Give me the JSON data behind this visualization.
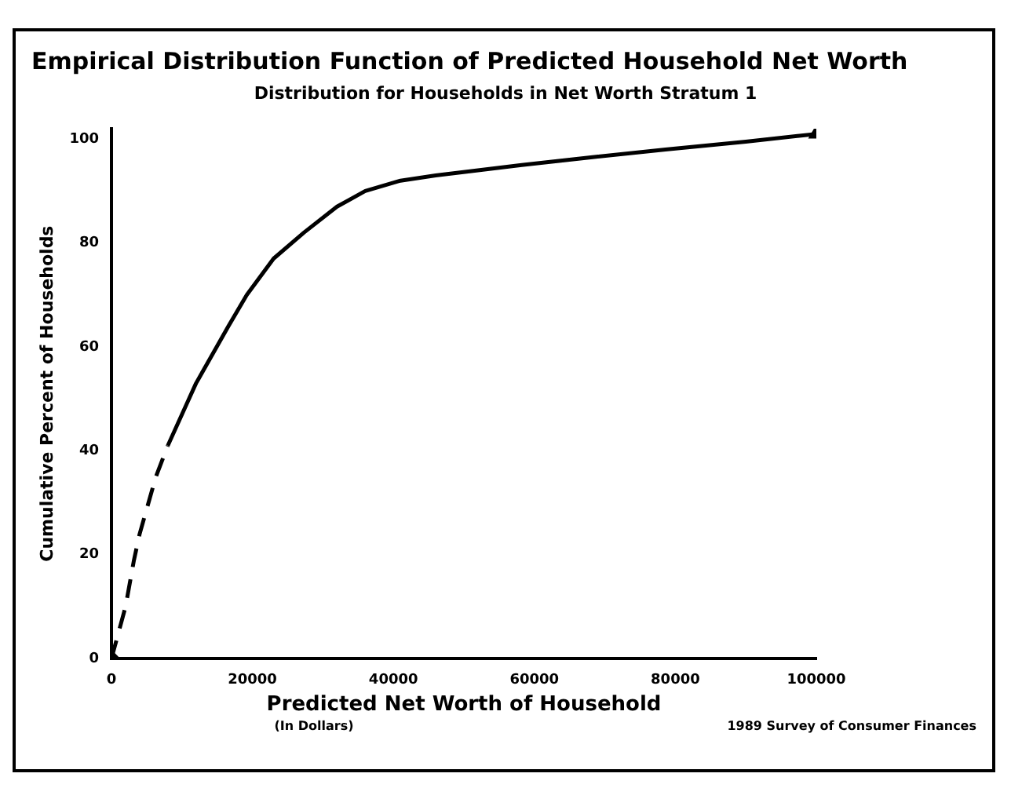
{
  "chart_data": {
    "type": "line",
    "title": "Empirical Distribution Function of Predicted Household Net Worth",
    "subtitle": "Distribution for Households in Net Worth Stratum 1",
    "xlabel": "Predicted Net Worth of Household",
    "ylabel": "Cumulative Percent of Households",
    "annotations": [
      "(In Dollars)",
      "1989 Survey of Consumer Finances"
    ],
    "xlim": [
      0,
      100000
    ],
    "xticks": [
      0,
      20000,
      40000,
      60000,
      80000,
      100000
    ],
    "ylim": [
      0,
      102
    ],
    "yticks": [
      0,
      20,
      40,
      60,
      80,
      100
    ],
    "grid": false,
    "legend": false,
    "marker": "none",
    "series": [
      {
        "color": "#000000",
        "line_style": "dashed",
        "x": [
          0,
          2000,
          3200,
          4000,
          6300,
          8000
        ],
        "values": [
          0,
          10,
          19,
          24,
          35,
          41
        ]
      },
      {
        "color": "#000000",
        "line_style": "solid",
        "x": [
          8000,
          12000,
          16600,
          19200,
          23000,
          27300,
          32000,
          36000,
          41000,
          46000,
          52000,
          58200,
          68000,
          78600,
          90000,
          100000
        ],
        "values": [
          41,
          53,
          64,
          70,
          77,
          82,
          87,
          90,
          92,
          93,
          94,
          95,
          96.5,
          98,
          99.5,
          101
        ]
      },
      {
        "type": "scatter",
        "color": "#000000",
        "marker": "diamond",
        "x": [
          0
        ],
        "values": [
          0
        ]
      },
      {
        "type": "scatter",
        "color": "#000000",
        "marker": "triangle",
        "x": [
          100000
        ],
        "values": [
          101
        ]
      }
    ]
  }
}
